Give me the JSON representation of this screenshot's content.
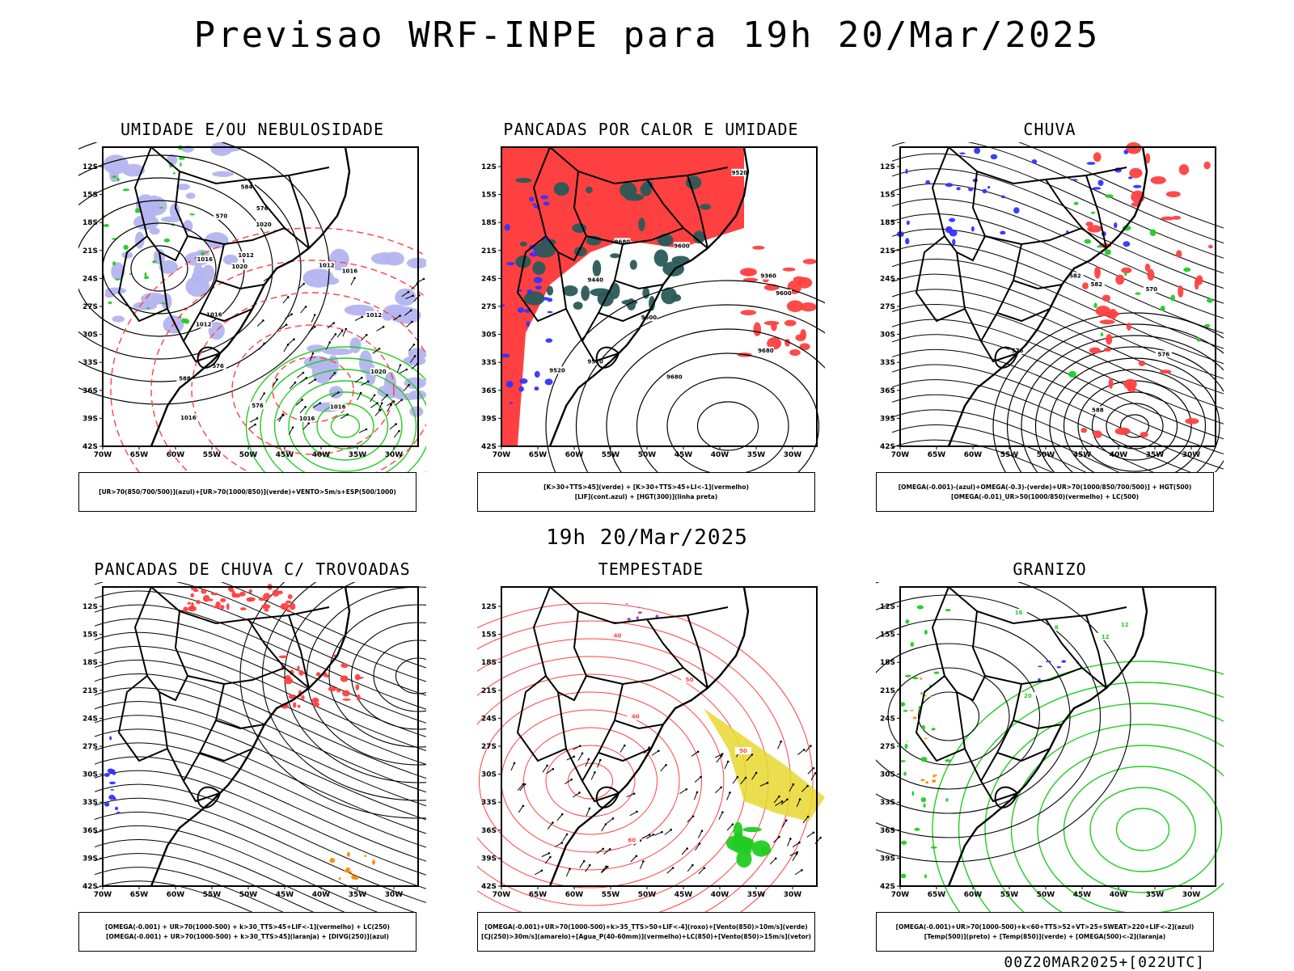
{
  "header": {
    "title": "Previsao WRF-INPE  para 19h 20/Mar/2025"
  },
  "mid_label": "19h 20/Mar/2025",
  "footer": "00Z20MAR2025+[022UTC]",
  "axes": {
    "lat_ticks": [
      "12S",
      "15S",
      "18S",
      "21S",
      "24S",
      "27S",
      "30S",
      "33S",
      "36S",
      "39S",
      "42S"
    ],
    "lon_ticks": [
      "70W",
      "65W",
      "60W",
      "55W",
      "50W",
      "45W",
      "40W",
      "35W",
      "30W"
    ]
  },
  "colors": {
    "red": "#ff4040",
    "blue": "#3333ff",
    "green": "#22cc22",
    "lavender": "#b4b4f0",
    "darkteal": "#2a5a58",
    "yellow": "#e6d830",
    "orange": "#ff8800",
    "purple": "#aa33cc"
  },
  "panels": [
    {
      "title": "UMIDADE E/OU NEBULOSIDADE",
      "legend": [
        "[UR>70(850/700/500)](azul)+[UR>70(1000/850)](verde)+VENTO>5m/s+ESP(500/1000)"
      ],
      "labels": [
        "1012",
        "1012",
        "1012",
        "1012",
        "1016",
        "1016",
        "1016",
        "1016",
        "1020",
        "1020",
        "1016",
        "1016",
        "1020",
        "576",
        "576",
        "584",
        "588",
        "576",
        "570"
      ]
    },
    {
      "title": "PANCADAS POR CALOR E UMIDADE",
      "legend": [
        "[K>30+TTS>45](verde) + [K>30+TTS>45+LI<-1](vermelho)",
        "[LIF](cont.azul) + [HGT(300)](linha preta)"
      ],
      "labels": [
        "9680",
        "9680",
        "9680",
        "9600",
        "9600",
        "9600",
        "9520",
        "9520",
        "9520",
        "9440",
        "9360"
      ]
    },
    {
      "title": "CHUVA",
      "legend": [
        "[OMEGA(-0.001)-(azul)+OMEGA(-0.3)-(verde)+UR>70(1000/850/700/500)] + HGT(500)",
        "[OMEGA(-0.01)_UR>50(1000/850)(vermelho) + LC(500)"
      ],
      "labels": [
        "588",
        "582",
        "582",
        "576",
        "576",
        "570"
      ]
    },
    {
      "title": "PANCADAS DE CHUVA C/ TROVOADAS",
      "legend": [
        "[OMEGA(-0.001) + UR>70(1000-500) + k>30_TTS>45+LIF<-1](vermelho) + LC(250)",
        "[OMEGA(-0.001) + UR>70(1000-500) + k>30_TTS>45](laranja) + [DIVG(250)](azul)"
      ],
      "labels": []
    },
    {
      "title": "TEMPESTADE",
      "legend": [
        "[OMEGA(-0.001)+UR>70(1000-500)+k>35_TTS>50+LIF<-4](roxo)+[Vento(850)>10m/s](verde)",
        "[CJ(250)>30m/s](amarelo)+[Agua_P(40-60mm)](vermelho)+LC(850)+[Vento(850)>15m/s](vetor)"
      ],
      "labels": [
        "40",
        "40",
        "50",
        "50",
        "60"
      ]
    },
    {
      "title": "GRANIZO",
      "legend": [
        "[OMEGA(-0.001)+UR>70(1000-500)+k<60+TTS>52+VT>25+SWEAT>220+LIF<-2](azul)",
        "[Temp(500)](preto) + [Temp(850)](verde) + [OMEGA(500)<-2](laranja)"
      ],
      "labels": [
        "12",
        "12",
        "16",
        "20",
        "8"
      ]
    }
  ]
}
